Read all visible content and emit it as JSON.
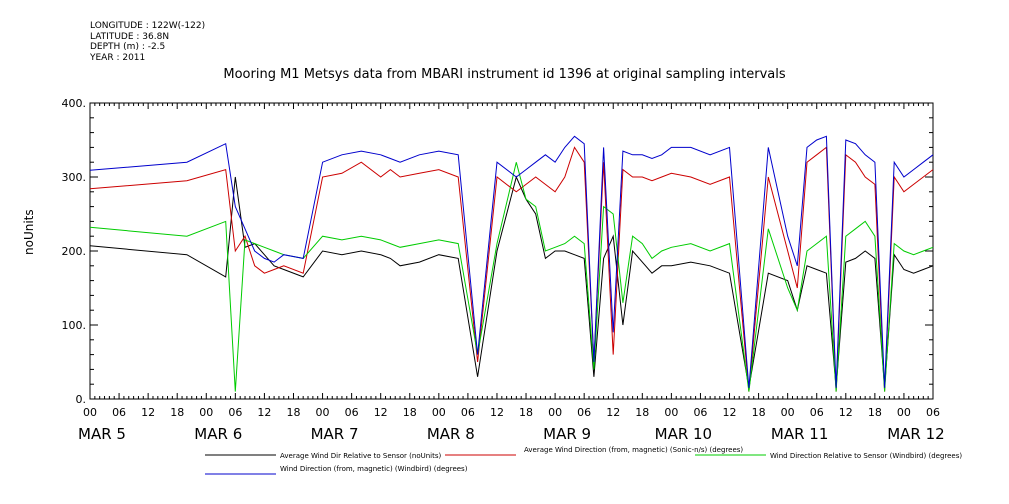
{
  "meta": {
    "longitude": "LONGITUDE : 122W(-122)",
    "latitude": "LATITUDE : 36.8N",
    "depth": "DEPTH (m) : -2.5",
    "year": "YEAR : 2011"
  },
  "chart_data": {
    "type": "line",
    "title": "Mooring M1 Metsys data from MBARI instrument id 1396 at original sampling intervals",
    "xlabel": "",
    "ylabel": "noUnits",
    "ylim": [
      0,
      400
    ],
    "xlim_hours": [
      0,
      174
    ],
    "y_ticks": [
      0,
      100,
      200,
      300,
      400
    ],
    "y_tick_labels": [
      "0.",
      "100.",
      "200.",
      "300.",
      "400."
    ],
    "x_hour_ticks": [
      0,
      6,
      12,
      18,
      0,
      6,
      12,
      18,
      0,
      6,
      12,
      18,
      0,
      6,
      12,
      18,
      0,
      6,
      12,
      18,
      0,
      6,
      12,
      18,
      0,
      6,
      12,
      18,
      0,
      6
    ],
    "x_hour_labels": [
      "00",
      "06",
      "12",
      "18",
      "00",
      "06",
      "12",
      "18",
      "00",
      "06",
      "12",
      "18",
      "00",
      "06",
      "12",
      "18",
      "00",
      "06",
      "12",
      "18",
      "00",
      "06",
      "12",
      "18",
      "00",
      "06",
      "12",
      "18",
      "00",
      "06"
    ],
    "day_labels": [
      "MAR  5",
      "MAR  6",
      "MAR  7",
      "MAR  8",
      "MAR  9",
      "MAR 10",
      "MAR 11",
      "MAR 12"
    ],
    "grid": false,
    "legend_position": "bottom",
    "series": [
      {
        "name": "Average Wind Dir Relative to Sensor (noUnits)",
        "color": "#000000",
        "x": [
          0,
          20,
          28,
          30,
          32,
          34,
          36,
          38,
          40,
          44,
          48,
          52,
          56,
          60,
          62,
          64,
          68,
          72,
          76,
          80,
          84,
          88,
          90,
          92,
          94,
          96,
          98,
          100,
          102,
          104,
          106,
          108,
          110,
          112,
          114,
          116,
          118,
          120,
          124,
          128,
          132,
          136,
          140,
          144,
          146,
          148,
          150,
          152,
          154,
          156,
          158,
          160,
          162,
          164,
          166,
          168,
          170,
          172,
          174
        ],
        "y": [
          207,
          195,
          165,
          300,
          205,
          210,
          195,
          180,
          175,
          165,
          200,
          195,
          200,
          195,
          190,
          180,
          185,
          195,
          190,
          30,
          200,
          300,
          270,
          250,
          190,
          200,
          200,
          195,
          190,
          30,
          190,
          220,
          100,
          200,
          185,
          170,
          180,
          180,
          185,
          180,
          170,
          15,
          170,
          160,
          120,
          180,
          175,
          170,
          15,
          185,
          190,
          200,
          190,
          15,
          195,
          175,
          170,
          175,
          180
        ]
      },
      {
        "name": "Average Wind Direction (from, magnetic) (Sonic-n/s) (degrees)",
        "color": "#cc0000",
        "x": [
          0,
          20,
          28,
          30,
          32,
          34,
          36,
          38,
          40,
          44,
          48,
          52,
          56,
          60,
          62,
          64,
          68,
          72,
          76,
          80,
          84,
          88,
          90,
          92,
          94,
          96,
          98,
          100,
          102,
          104,
          106,
          108,
          110,
          112,
          114,
          116,
          118,
          120,
          124,
          128,
          132,
          136,
          140,
          144,
          146,
          148,
          150,
          152,
          154,
          156,
          158,
          160,
          162,
          164,
          166,
          168,
          170,
          172,
          174
        ],
        "y": [
          284,
          295,
          310,
          200,
          220,
          180,
          170,
          175,
          180,
          170,
          300,
          305,
          320,
          300,
          310,
          300,
          305,
          310,
          300,
          50,
          300,
          280,
          290,
          300,
          290,
          280,
          300,
          340,
          320,
          50,
          320,
          60,
          310,
          300,
          300,
          295,
          300,
          305,
          300,
          290,
          300,
          10,
          300,
          200,
          150,
          320,
          330,
          340,
          10,
          330,
          320,
          300,
          290,
          10,
          300,
          280,
          290,
          300,
          310
        ]
      },
      {
        "name": "Wind Direction Relative to Sensor (Windbird) (degrees)",
        "color": "#00cc00",
        "x": [
          0,
          20,
          28,
          30,
          32,
          34,
          36,
          38,
          40,
          44,
          48,
          52,
          56,
          60,
          62,
          64,
          68,
          72,
          76,
          80,
          84,
          88,
          90,
          92,
          94,
          96,
          98,
          100,
          102,
          104,
          106,
          108,
          110,
          112,
          114,
          116,
          118,
          120,
          124,
          128,
          132,
          136,
          140,
          144,
          146,
          148,
          150,
          152,
          154,
          156,
          158,
          160,
          162,
          164,
          166,
          168,
          170,
          172,
          174
        ],
        "y": [
          232,
          220,
          240,
          10,
          215,
          210,
          205,
          200,
          195,
          190,
          220,
          215,
          220,
          215,
          210,
          205,
          210,
          215,
          210,
          60,
          210,
          320,
          270,
          260,
          200,
          205,
          210,
          220,
          210,
          40,
          260,
          250,
          130,
          220,
          210,
          190,
          200,
          205,
          210,
          200,
          210,
          10,
          230,
          150,
          120,
          200,
          210,
          220,
          10,
          220,
          230,
          240,
          220,
          10,
          210,
          200,
          195,
          200,
          205
        ]
      },
      {
        "name": "Wind Direction (from, magnetic) (Windbird) (degrees)",
        "color": "#0000cc",
        "x": [
          0,
          20,
          28,
          30,
          32,
          34,
          36,
          38,
          40,
          44,
          48,
          52,
          56,
          60,
          62,
          64,
          68,
          72,
          76,
          80,
          84,
          88,
          90,
          92,
          94,
          96,
          98,
          100,
          102,
          104,
          106,
          108,
          110,
          112,
          114,
          116,
          118,
          120,
          124,
          128,
          132,
          136,
          140,
          144,
          146,
          148,
          150,
          152,
          154,
          156,
          158,
          160,
          162,
          164,
          166,
          168,
          170,
          172,
          174
        ],
        "y": [
          309,
          320,
          345,
          260,
          230,
          200,
          190,
          185,
          195,
          190,
          320,
          330,
          335,
          330,
          325,
          320,
          330,
          335,
          330,
          60,
          320,
          300,
          310,
          320,
          330,
          320,
          340,
          355,
          345,
          50,
          340,
          90,
          335,
          330,
          330,
          325,
          330,
          340,
          340,
          330,
          340,
          15,
          340,
          220,
          180,
          340,
          350,
          355,
          15,
          350,
          345,
          330,
          320,
          15,
          320,
          300,
          310,
          320,
          330
        ]
      }
    ]
  }
}
